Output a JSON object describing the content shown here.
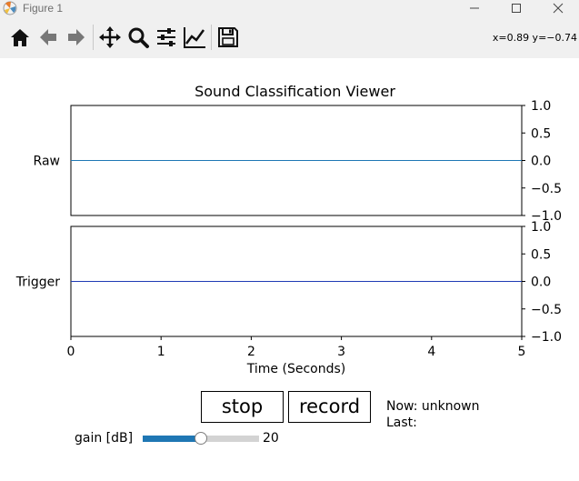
{
  "window": {
    "title": "Figure 1",
    "controls": [
      "minimize-icon",
      "maximize-icon",
      "close-icon"
    ]
  },
  "toolbar": {
    "buttons": [
      {
        "name": "home-icon",
        "tooltip": "Home"
      },
      {
        "name": "back-arrow-icon",
        "tooltip": "Back"
      },
      {
        "name": "forward-arrow-icon",
        "tooltip": "Forward"
      },
      {
        "name": "pan-icon",
        "tooltip": "Pan"
      },
      {
        "name": "zoom-icon",
        "tooltip": "Zoom"
      },
      {
        "name": "subplots-icon",
        "tooltip": "Subplots"
      },
      {
        "name": "edit-axes-icon",
        "tooltip": "Customize"
      },
      {
        "name": "save-icon",
        "tooltip": "Save"
      }
    ],
    "coords": "x=0.89 y=−0.74"
  },
  "figure": {
    "title": "Sound Classification Viewer",
    "xlabel": "Time (Seconds)",
    "colors": {
      "line": "#1f77b4",
      "slider_fill": "#1f77b4",
      "slider_track": "#d3d3d3"
    }
  },
  "chart_data": [
    {
      "type": "line",
      "ylabel": "Raw",
      "xlim": [
        0,
        5
      ],
      "ylim": [
        -1.0,
        1.0
      ],
      "yticks": [
        "1.0",
        "0.5",
        "0.0",
        "−0.5",
        "−1.0"
      ],
      "ytick_values": [
        1.0,
        0.5,
        0.0,
        -0.5,
        -1.0
      ],
      "series": [
        {
          "x": [
            0,
            5
          ],
          "values": [
            0,
            0
          ],
          "color": "#1f77b4"
        }
      ],
      "grid": false,
      "yaxis_side": "right"
    },
    {
      "type": "line",
      "ylabel": "Trigger",
      "xlim": [
        0,
        5
      ],
      "ylim": [
        -1.0,
        1.0
      ],
      "xticks": [
        "0",
        "1",
        "2",
        "3",
        "4",
        "5"
      ],
      "xtick_values": [
        0,
        1,
        2,
        3,
        4,
        5
      ],
      "yticks": [
        "1.0",
        "0.5",
        "0.0",
        "−0.5",
        "−1.0"
      ],
      "ytick_values": [
        1.0,
        0.5,
        0.0,
        -0.5,
        -1.0
      ],
      "series": [
        {
          "x": [
            0,
            5
          ],
          "values": [
            0,
            0
          ],
          "color": "#1f3bb4"
        }
      ],
      "grid": false,
      "yaxis_side": "right"
    }
  ],
  "controls": {
    "stop_label": "stop",
    "record_label": "record",
    "now_text": "Now: unknown",
    "last_text": "Last:",
    "gain": {
      "label": "gain [dB]",
      "value": 20,
      "value_text": "20",
      "min": 0,
      "max": 40
    }
  }
}
